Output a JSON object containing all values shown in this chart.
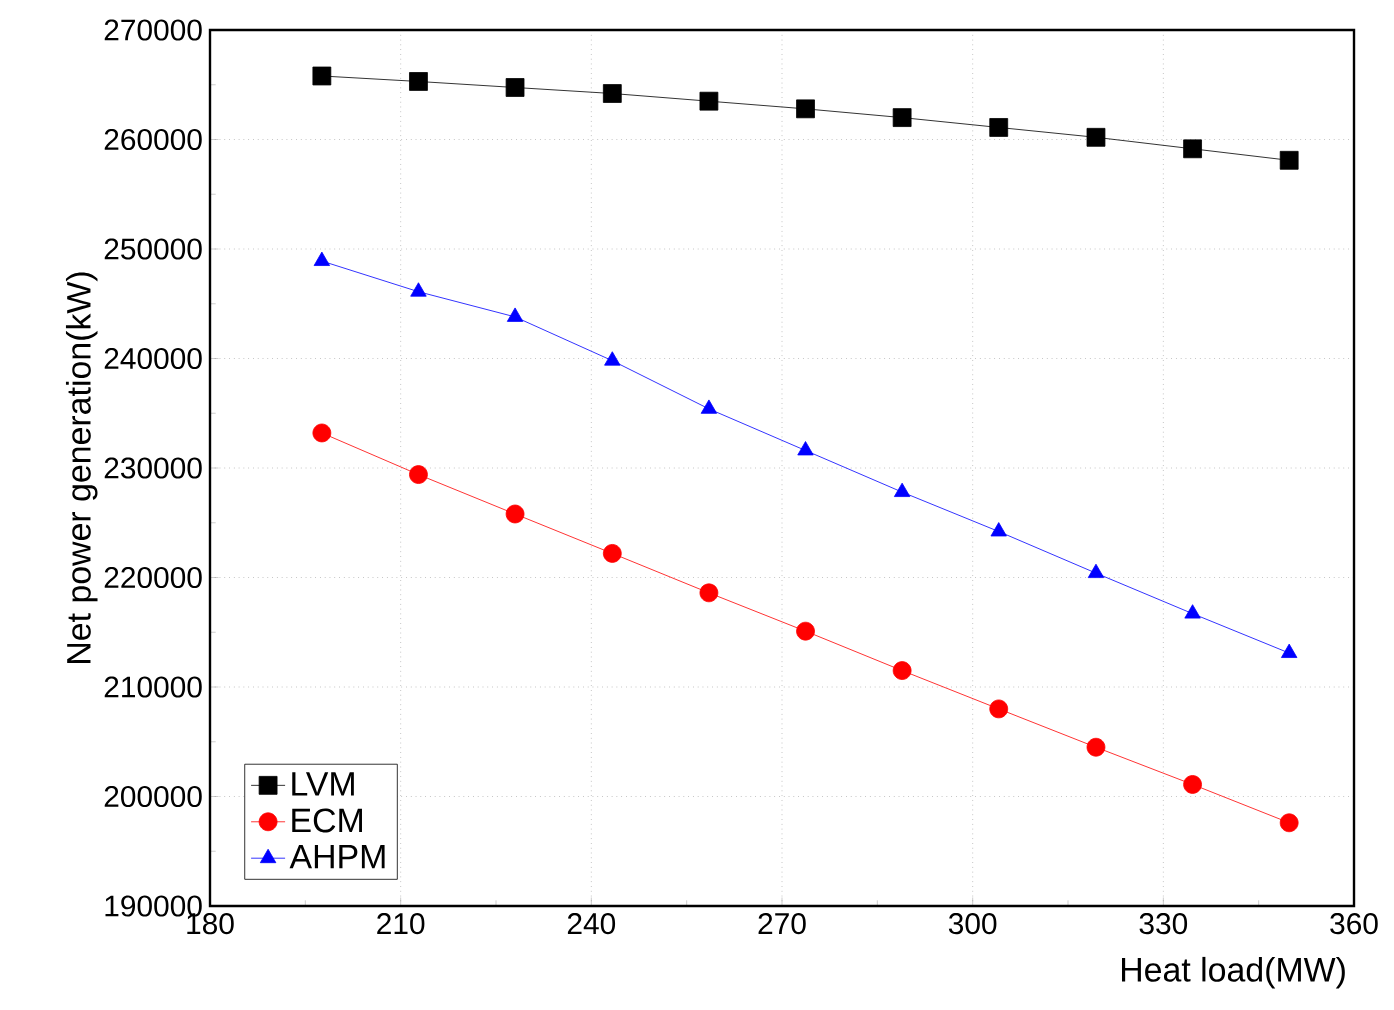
{
  "chart_data": {
    "type": "line",
    "xlabel": "Heat load(MW)",
    "ylabel": "Net power generation(kW)",
    "x": [
      197.6,
      212.8,
      228.0,
      243.3,
      258.5,
      273.7,
      288.9,
      304.1,
      319.4,
      334.6,
      349.8
    ],
    "series": [
      {
        "name": "LVM",
        "color": "#000000",
        "marker": "square",
        "values": [
          265800,
          265300,
          264750,
          264200,
          263500,
          262800,
          262000,
          261100,
          260200,
          259150,
          258100
        ]
      },
      {
        "name": "ECM",
        "color": "#ff0000",
        "marker": "circle",
        "values": [
          233200,
          229400,
          225800,
          222200,
          218600,
          215100,
          211500,
          208000,
          204500,
          201100,
          197600
        ]
      },
      {
        "name": "AHPM",
        "color": "#0000ff",
        "marker": "triangle",
        "values": [
          248900,
          246100,
          243800,
          239800,
          235400,
          231600,
          227800,
          224200,
          220400,
          216700,
          213100
        ]
      }
    ],
    "xlim": [
      180,
      360
    ],
    "xticks": [
      180,
      210,
      240,
      270,
      300,
      330,
      360
    ],
    "ylim": [
      190000,
      270000
    ],
    "yticks": [
      190000,
      200000,
      210000,
      220000,
      230000,
      240000,
      250000,
      260000,
      270000
    ],
    "grid": true,
    "legend": "bottom left",
    "line_style": "solid"
  }
}
